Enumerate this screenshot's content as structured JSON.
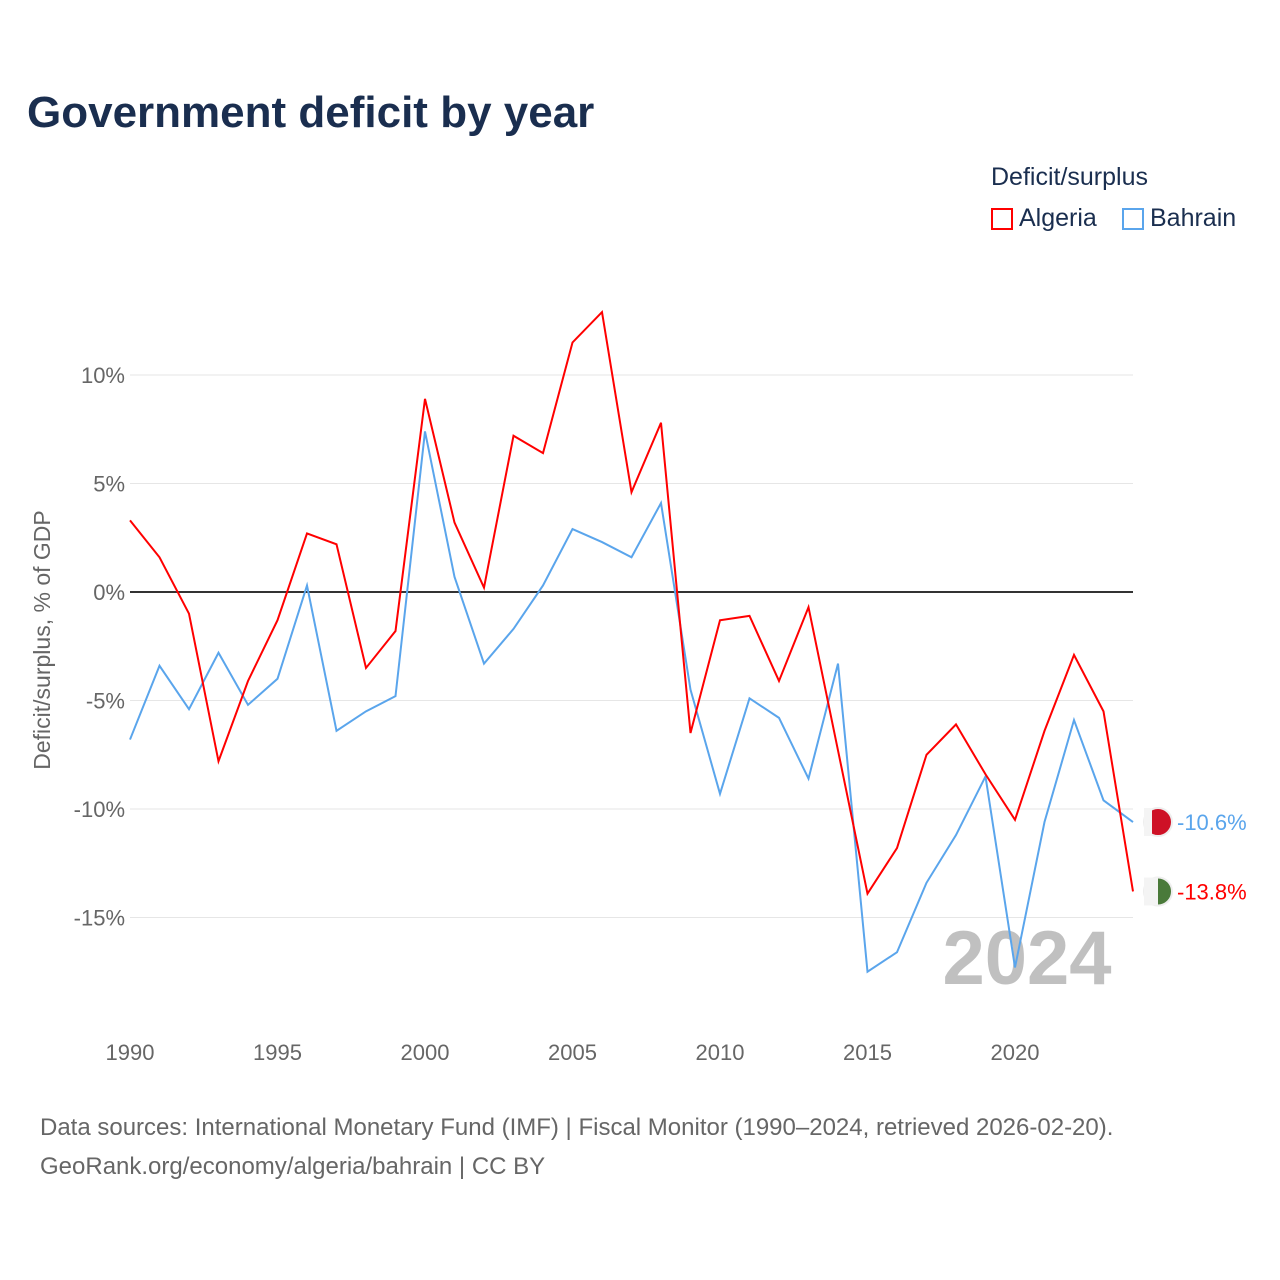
{
  "title": "Government deficit by year",
  "legend": {
    "title": "Deficit/surplus",
    "items": [
      {
        "name": "Algeria",
        "color": "#ff0000"
      },
      {
        "name": "Bahrain",
        "color": "#5aa5ec"
      }
    ]
  },
  "source": {
    "line1": "Data sources: International Monetary Fund (IMF) | Fiscal Monitor (1990–2024, retrieved 2026-02-20).",
    "line2": "GeoRank.org/economy/algeria/bahrain | CC BY"
  },
  "year_watermark": "2024",
  "chart_data": {
    "type": "line",
    "title": "Government deficit by year",
    "xlabel": "",
    "ylabel": "Deficit/surplus, % of GDP",
    "xlim": [
      1990,
      2024
    ],
    "ylim": [
      -19.3,
      13.9
    ],
    "x_ticks": [
      1990,
      1995,
      2000,
      2005,
      2010,
      2015,
      2020
    ],
    "y_ticks": [
      {
        "v": 10,
        "label": "10%"
      },
      {
        "v": 5,
        "label": "5%"
      },
      {
        "v": 0,
        "label": "0%"
      },
      {
        "v": -5,
        "label": "-5%"
      },
      {
        "v": -10,
        "label": "-10%"
      },
      {
        "v": -15,
        "label": "-15%"
      }
    ],
    "x": [
      1990,
      1991,
      1992,
      1993,
      1994,
      1995,
      1996,
      1997,
      1998,
      1999,
      2000,
      2001,
      2002,
      2003,
      2004,
      2005,
      2006,
      2007,
      2008,
      2009,
      2010,
      2011,
      2012,
      2013,
      2014,
      2015,
      2016,
      2017,
      2018,
      2019,
      2020,
      2021,
      2022,
      2023,
      2024
    ],
    "series": [
      {
        "name": "Algeria",
        "color": "#ff0000",
        "end_label": "-13.8%",
        "values": [
          3.3,
          1.6,
          -1.0,
          -7.8,
          -4.1,
          -1.3,
          2.7,
          2.2,
          -3.5,
          -1.8,
          8.9,
          3.2,
          0.2,
          7.2,
          6.4,
          11.5,
          12.9,
          4.6,
          7.8,
          -6.5,
          -1.3,
          -1.1,
          -4.1,
          -0.7,
          -7.3,
          -13.9,
          -11.8,
          -7.5,
          -6.1,
          -8.4,
          -10.5,
          -6.4,
          -2.9,
          -5.5,
          -13.8
        ]
      },
      {
        "name": "Bahrain",
        "color": "#5aa5ec",
        "end_label": "-10.6%",
        "values": [
          -6.8,
          -3.4,
          -5.4,
          -2.8,
          -5.2,
          -4.0,
          0.3,
          -6.4,
          -5.5,
          -4.8,
          7.4,
          0.7,
          -3.3,
          -1.7,
          0.3,
          2.9,
          2.3,
          1.6,
          4.1,
          -4.5,
          -9.3,
          -4.9,
          -5.8,
          -8.6,
          -3.3,
          -17.5,
          -16.6,
          -13.4,
          -11.2,
          -8.5,
          -17.3,
          -10.6,
          -5.9,
          -9.6,
          -10.6
        ]
      }
    ],
    "legend_position": "top-right"
  }
}
